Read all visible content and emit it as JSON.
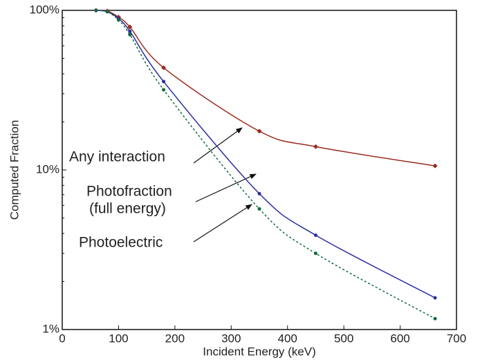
{
  "chart_data": {
    "type": "line",
    "xlabel": "Incident Energy (keV)",
    "ylabel": "Computed Fraction",
    "x": [
      60,
      80,
      100,
      120,
      180,
      350,
      450,
      662
    ],
    "series": [
      {
        "name": "Any interaction",
        "color": "#9b2a1e",
        "marker": "diamond",
        "linestyle": "solid",
        "values": [
          100,
          99,
          90.6,
          78.7,
          43.7,
          17.5,
          14,
          10.6
        ]
      },
      {
        "name": "Photofraction (full energy)",
        "color": "#2a2ea0",
        "marker": "circle",
        "linestyle": "solid",
        "values": [
          100,
          98,
          88.7,
          74,
          35.8,
          7.1,
          3.9,
          1.58
        ]
      },
      {
        "name": "Photoelectric",
        "color": "#0d6a3c",
        "marker": "circle",
        "linestyle": "dotted",
        "values": [
          100,
          98,
          87,
          70.5,
          31.8,
          5.7,
          3.0,
          1.17
        ]
      }
    ],
    "annotations": [
      "Any interaction",
      "Photofraction",
      "(full energy)",
      "Photoelectric"
    ],
    "xlim": [
      0,
      700
    ],
    "xticks": [
      0,
      100,
      200,
      300,
      400,
      500,
      600,
      700
    ],
    "ylim": [
      1,
      100
    ],
    "ylog": true,
    "yticks": [
      {
        "value": 1,
        "label": "1%"
      },
      {
        "value": 10,
        "label": "10%"
      },
      {
        "value": 100,
        "label": "100%"
      }
    ],
    "grid": false
  }
}
